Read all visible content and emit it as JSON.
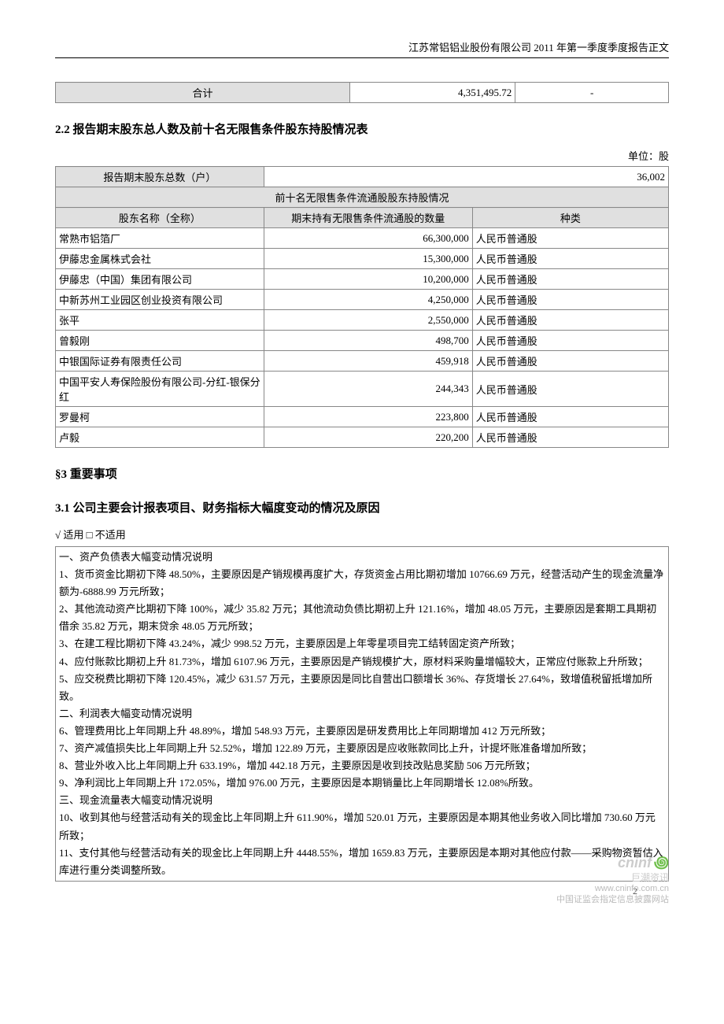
{
  "header": {
    "text": "江苏常铝铝业股份有限公司 2011 年第一季度季度报告正文"
  },
  "total_row": {
    "label": "合计",
    "value": "4,351,495.72",
    "third": "-"
  },
  "section22": {
    "title": "2.2 报告期末股东总人数及前十名无限售条件股东持股情况表",
    "unit": "单位：股",
    "total_holders_label": "报告期末股东总数（户）",
    "total_holders_value": "36,002",
    "subheader": "前十名无限售条件流通股股东持股情况",
    "columns": [
      "股东名称（全称）",
      "期末持有无限售条件流通股的数量",
      "种类"
    ],
    "rows": [
      {
        "name": "常熟市铝箔厂",
        "qty": "66,300,000",
        "type": "人民币普通股"
      },
      {
        "name": "伊藤忠金属株式会社",
        "qty": "15,300,000",
        "type": "人民币普通股"
      },
      {
        "name": "伊藤忠（中国）集团有限公司",
        "qty": "10,200,000",
        "type": "人民币普通股"
      },
      {
        "name": "中新苏州工业园区创业投资有限公司",
        "qty": "4,250,000",
        "type": "人民币普通股"
      },
      {
        "name": "张平",
        "qty": "2,550,000",
        "type": "人民币普通股"
      },
      {
        "name": "曾毅刚",
        "qty": "498,700",
        "type": "人民币普通股"
      },
      {
        "name": "中银国际证券有限责任公司",
        "qty": "459,918",
        "type": "人民币普通股"
      },
      {
        "name": "中国平安人寿保险股份有限公司-分红-银保分红",
        "qty": "244,343",
        "type": "人民币普通股"
      },
      {
        "name": "罗曼柯",
        "qty": "223,800",
        "type": "人民币普通股"
      },
      {
        "name": "卢毅",
        "qty": "220,200",
        "type": "人民币普通股"
      }
    ]
  },
  "section3": {
    "title": "§3  重要事项"
  },
  "section31": {
    "title": "3.1 公司主要会计报表项目、财务指标大幅度变动的情况及原因",
    "applies": "√ 适用 □ 不适用",
    "lines": [
      "一、资产负债表大幅变动情况说明",
      "1、货币资金比期初下降 48.50%，主要原因是产销规模再度扩大，存货资金占用比期初增加 10766.69 万元，经营活动产生的现金流量净额为-6888.99 万元所致；",
      "2、其他流动资产比期初下降 100%，减少 35.82 万元；其他流动负债比期初上升 121.16%，增加 48.05 万元，主要原因是套期工具期初借余 35.82 万元，期末贷余 48.05 万元所致；",
      "3、在建工程比期初下降 43.24%，减少 998.52 万元，主要原因是上年零星项目完工结转固定资产所致；",
      "4、应付账款比期初上升 81.73%，增加 6107.96 万元，主要原因是产销规模扩大，原材料采购量增幅较大，正常应付账款上升所致；",
      "5、应交税费比期初下降 120.45%，减少 631.57 万元，主要原因是同比自营出口额增长 36%、存货增长 27.64%，致增值税留抵增加所致。",
      "二、利润表大幅变动情况说明",
      "6、管理费用比上年同期上升 48.89%，增加 548.93 万元，主要原因是研发费用比上年同期增加 412 万元所致；",
      "7、资产减值损失比上年同期上升 52.52%，增加 122.89 万元，主要原因是应收账款同比上升，计提坏账准备增加所致；",
      "8、营业外收入比上年同期上升 633.19%，增加 442.18 万元，主要原因是收到技改贴息奖励 506 万元所致；",
      "9、净利润比上年同期上升 172.05%，增加 976.00 万元，主要原因是本期销量比上年同期增长 12.08%所致。",
      "三、现金流量表大幅变动情况说明",
      "10、收到其他与经营活动有关的现金比上年同期上升 611.90%，增加 520.01 万元，主要原因是本期其他业务收入同比增加 730.60 万元所致；",
      "11、支付其他与经营活动有关的现金比上年同期上升 4448.55%，增加 1659.83 万元，主要原因是本期对其他应付款——采购物资暂估入库进行重分类调整所致。"
    ]
  },
  "page_number": "2",
  "watermark": {
    "brand": "cninf",
    "cn": "巨潮资讯",
    "url": "www.cninfo.com.cn",
    "note": "中国证监会指定信息披露网站"
  }
}
